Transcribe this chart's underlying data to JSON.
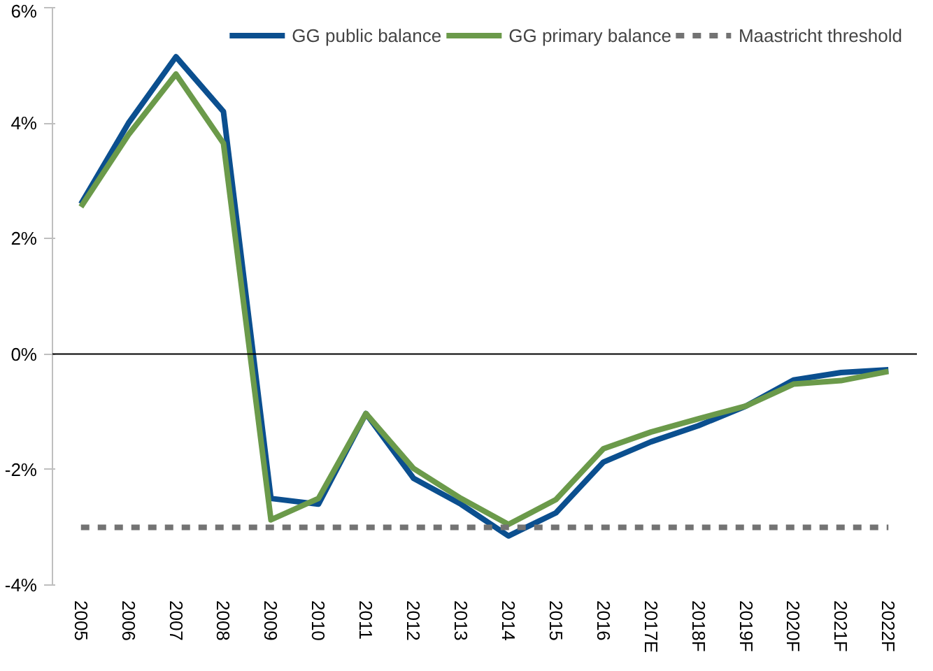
{
  "chart_data": {
    "type": "line",
    "categories": [
      "2005",
      "2006",
      "2007",
      "2008",
      "2009",
      "2010",
      "2011",
      "2012",
      "2013",
      "2014",
      "2015",
      "2016",
      "2017E",
      "2018F",
      "2019F",
      "2020F",
      "2021F",
      "2022F"
    ],
    "series": [
      {
        "name": "GG public balance",
        "color": "#0b4f8f",
        "values": [
          2.6,
          4.0,
          5.15,
          4.2,
          -2.5,
          -2.6,
          -1.03,
          -2.15,
          -2.6,
          -3.15,
          -2.75,
          -1.87,
          -1.52,
          -1.24,
          -0.9,
          -0.45,
          -0.32,
          -0.27
        ]
      },
      {
        "name": "GG primary balance",
        "color": "#6b9a4a",
        "values": [
          2.55,
          3.8,
          4.85,
          3.65,
          -2.87,
          -2.5,
          -1.03,
          -1.98,
          -2.5,
          -2.95,
          -2.52,
          -1.64,
          -1.35,
          -1.12,
          -0.9,
          -0.52,
          -0.46,
          -0.3
        ]
      },
      {
        "name": "Maastricht threshold",
        "color": "#737373",
        "line_style": "dashed",
        "values": [
          -3,
          -3,
          -3,
          -3,
          -3,
          -3,
          -3,
          -3,
          -3,
          -3,
          -3,
          -3,
          -3,
          -3,
          -3,
          -3,
          -3,
          -3
        ]
      }
    ],
    "ylim": [
      -4,
      6
    ],
    "yticks": [
      {
        "value": -4,
        "label": "-4%"
      },
      {
        "value": -2,
        "label": "-2%"
      },
      {
        "value": 0,
        "label": "0%"
      },
      {
        "value": 2,
        "label": "2%"
      },
      {
        "value": 4,
        "label": "4%"
      },
      {
        "value": 6,
        "label": "6%"
      }
    ],
    "ref_lines": [
      {
        "axis": "y",
        "value": 0,
        "color": "#000000"
      }
    ],
    "grid": false,
    "legend": "top",
    "marker": "none",
    "line_style": "solid"
  }
}
